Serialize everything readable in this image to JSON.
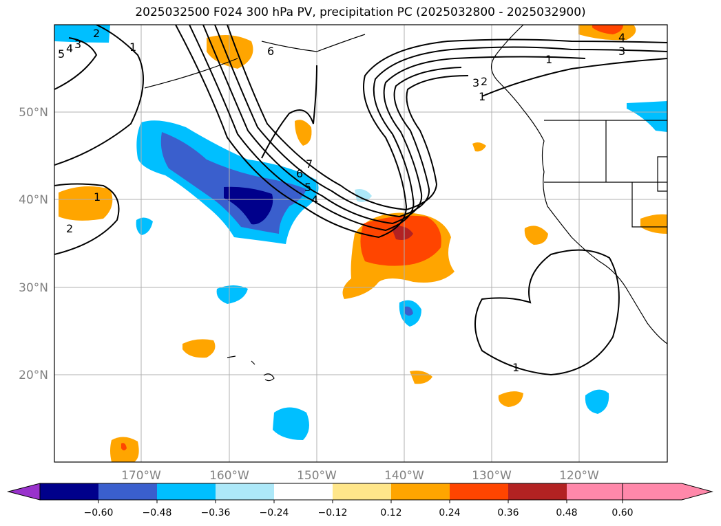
{
  "title": "2025032500 F024 300 hPa PV, precipitation PC (2025032800 - 2025032900)",
  "map": {
    "lon_range": [
      -180,
      -110
    ],
    "lat_range": [
      10,
      60
    ],
    "grid": true,
    "lat_ticks": [
      "50°N",
      "40°N",
      "30°N",
      "20°N"
    ],
    "lon_ticks": [
      "170°W",
      "160°W",
      "150°W",
      "140°W",
      "130°W",
      "120°W"
    ]
  },
  "contour_labels": [
    "2",
    "3",
    "4",
    "5",
    "1",
    "2",
    "1",
    "6",
    "7",
    "6",
    "5",
    "4",
    "3",
    "1",
    "2",
    "1",
    "4",
    "3",
    "1"
  ],
  "colorbar": {
    "ticks": [
      "−0.60",
      "−0.48",
      "−0.36",
      "−0.24",
      "−0.12",
      "0.12",
      "0.24",
      "0.36",
      "0.48",
      "0.60"
    ],
    "colors": [
      "#9932cc",
      "#00008b",
      "#3a5fcd",
      "#00bfff",
      "#ade8f8",
      "#ffffff",
      "#ffe68a",
      "#ffa500",
      "#ff4500",
      "#b22222",
      "#ff88aa"
    ]
  }
}
